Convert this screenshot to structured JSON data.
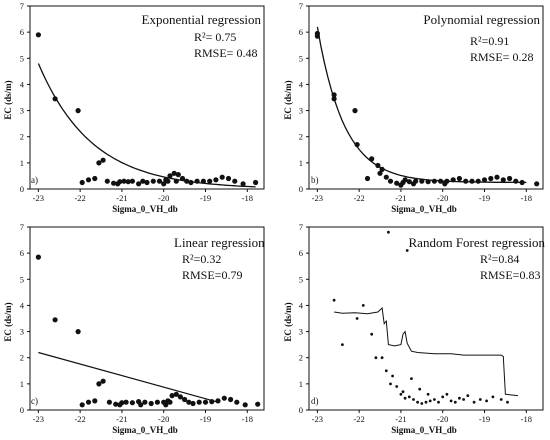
{
  "chart_data": [
    {
      "id": "a",
      "type": "scatter",
      "title": "Exponential regression",
      "stats": [
        "R²= 0.75",
        "RMSE= 0.48"
      ],
      "panel_label": "a)",
      "xlabel": "Sigma_0_VH_db",
      "ylabel": "EC (ds/m)",
      "xlim": [
        -23.2,
        -17.6
      ],
      "ylim": [
        0,
        7
      ],
      "xticks": [
        "-23",
        "-22",
        "-21",
        "-20",
        "-19",
        "-18"
      ],
      "yticks": [
        "0",
        "1",
        "2",
        "3",
        "4",
        "5",
        "6",
        "7"
      ],
      "points": [
        [
          -23.0,
          5.9
        ],
        [
          -22.6,
          3.45
        ],
        [
          -22.05,
          3.0
        ],
        [
          -21.55,
          1.0
        ],
        [
          -21.45,
          1.1
        ],
        [
          -21.8,
          0.35
        ],
        [
          -21.95,
          0.25
        ],
        [
          -21.65,
          0.4
        ],
        [
          -21.35,
          0.3
        ],
        [
          -21.2,
          0.22
        ],
        [
          -21.05,
          0.28
        ],
        [
          -20.95,
          0.3
        ],
        [
          -20.85,
          0.28
        ],
        [
          -20.75,
          0.3
        ],
        [
          -20.5,
          0.3
        ],
        [
          -20.4,
          0.25
        ],
        [
          -20.25,
          0.3
        ],
        [
          -20.1,
          0.3
        ],
        [
          -19.95,
          0.35
        ],
        [
          -19.85,
          0.5
        ],
        [
          -19.75,
          0.6
        ],
        [
          -19.65,
          0.55
        ],
        [
          -19.55,
          0.4
        ],
        [
          -19.45,
          0.3
        ],
        [
          -19.35,
          0.25
        ],
        [
          -19.2,
          0.3
        ],
        [
          -19.05,
          0.3
        ],
        [
          -18.9,
          0.3
        ],
        [
          -18.75,
          0.35
        ],
        [
          -18.6,
          0.45
        ],
        [
          -18.45,
          0.4
        ],
        [
          -18.3,
          0.3
        ],
        [
          -18.1,
          0.2
        ],
        [
          -17.8,
          0.25
        ],
        [
          -20.0,
          0.2
        ],
        [
          -19.9,
          0.3
        ],
        [
          -19.7,
          0.3
        ],
        [
          -20.6,
          0.2
        ],
        [
          -21.1,
          0.2
        ]
      ],
      "curve": {
        "model": "exponential",
        "a": 4.8,
        "b": 0.78,
        "x0": -23.0,
        "x1": -17.8
      }
    },
    {
      "id": "b",
      "type": "scatter",
      "title": "Polynomial regression",
      "stats": [
        "R²=0.91",
        "RMSE= 0.28"
      ],
      "panel_label": "b)",
      "xlabel": "Sigma_0_VH_db",
      "ylabel": "EC (ds/m)",
      "xlim": [
        -23.2,
        -17.6
      ],
      "ylim": [
        0,
        7
      ],
      "xticks": [
        "-23",
        "-22",
        "-21",
        "-20",
        "-19",
        "-18"
      ],
      "yticks": [
        "0",
        "1",
        "2",
        "3",
        "4",
        "5",
        "6",
        "7"
      ],
      "points": [
        [
          -23.0,
          5.95
        ],
        [
          -23.0,
          5.85
        ],
        [
          -22.6,
          3.6
        ],
        [
          -22.6,
          3.45
        ],
        [
          -22.1,
          3.0
        ],
        [
          -22.05,
          1.7
        ],
        [
          -21.7,
          1.15
        ],
        [
          -21.55,
          0.9
        ],
        [
          -21.5,
          0.6
        ],
        [
          -21.35,
          0.45
        ],
        [
          -21.45,
          0.75
        ],
        [
          -21.8,
          0.4
        ],
        [
          -21.25,
          0.3
        ],
        [
          -21.1,
          0.22
        ],
        [
          -20.95,
          0.25
        ],
        [
          -20.8,
          0.28
        ],
        [
          -20.65,
          0.3
        ],
        [
          -20.5,
          0.3
        ],
        [
          -20.35,
          0.28
        ],
        [
          -20.2,
          0.3
        ],
        [
          -20.05,
          0.3
        ],
        [
          -19.9,
          0.3
        ],
        [
          -19.75,
          0.35
        ],
        [
          -19.6,
          0.4
        ],
        [
          -19.45,
          0.3
        ],
        [
          -19.3,
          0.3
        ],
        [
          -19.15,
          0.3
        ],
        [
          -19.0,
          0.35
        ],
        [
          -18.85,
          0.4
        ],
        [
          -18.7,
          0.45
        ],
        [
          -18.55,
          0.35
        ],
        [
          -18.4,
          0.4
        ],
        [
          -18.25,
          0.3
        ],
        [
          -18.1,
          0.25
        ],
        [
          -17.75,
          0.2
        ],
        [
          -20.7,
          0.2
        ],
        [
          -20.9,
          0.35
        ],
        [
          -19.95,
          0.2
        ],
        [
          -21.0,
          0.15
        ]
      ],
      "curve": {
        "model": "polynomial",
        "x0": -23.0,
        "x1": -18.0
      }
    },
    {
      "id": "c",
      "type": "scatter",
      "title": "Linear regression",
      "stats": [
        "R²=0.32",
        "RMSE=0.79"
      ],
      "panel_label": "c)",
      "xlabel": "Sigma_0_VH_db",
      "ylabel": "EC (ds/m)",
      "xlim": [
        -23.2,
        -17.6
      ],
      "ylim": [
        0,
        7
      ],
      "xticks": [
        "-23",
        "-22",
        "-21",
        "-20",
        "-19",
        "-18"
      ],
      "yticks": [
        "0",
        "1",
        "2",
        "3",
        "4",
        "5",
        "6",
        "7"
      ],
      "points": [
        [
          -23.0,
          5.85
        ],
        [
          -22.6,
          3.45
        ],
        [
          -22.05,
          3.0
        ],
        [
          -21.55,
          1.0
        ],
        [
          -21.45,
          1.1
        ],
        [
          -21.8,
          0.3
        ],
        [
          -21.95,
          0.2
        ],
        [
          -21.65,
          0.35
        ],
        [
          -21.3,
          0.3
        ],
        [
          -21.15,
          0.22
        ],
        [
          -21.0,
          0.28
        ],
        [
          -20.9,
          0.3
        ],
        [
          -20.75,
          0.28
        ],
        [
          -20.6,
          0.32
        ],
        [
          -20.45,
          0.3
        ],
        [
          -20.3,
          0.25
        ],
        [
          -20.15,
          0.3
        ],
        [
          -20.0,
          0.3
        ],
        [
          -19.9,
          0.35
        ],
        [
          -19.8,
          0.55
        ],
        [
          -19.7,
          0.6
        ],
        [
          -19.6,
          0.5
        ],
        [
          -19.5,
          0.4
        ],
        [
          -19.4,
          0.3
        ],
        [
          -19.3,
          0.25
        ],
        [
          -19.15,
          0.3
        ],
        [
          -19.0,
          0.3
        ],
        [
          -18.85,
          0.32
        ],
        [
          -18.7,
          0.35
        ],
        [
          -18.55,
          0.45
        ],
        [
          -18.4,
          0.4
        ],
        [
          -18.25,
          0.3
        ],
        [
          -18.05,
          0.2
        ],
        [
          -17.75,
          0.22
        ],
        [
          -19.95,
          0.2
        ],
        [
          -19.85,
          0.3
        ],
        [
          -20.55,
          0.2
        ],
        [
          -21.05,
          0.2
        ]
      ],
      "line": {
        "x0": -23.0,
        "y0": 2.2,
        "x1": -18.7,
        "y1": 0.3
      }
    },
    {
      "id": "d",
      "type": "scatter",
      "title": "Random Forest regression",
      "stats": [
        "R²=0.84",
        "RMSE=0.83"
      ],
      "panel_label": "d)",
      "xlabel": "Sigma_0_VH_db",
      "ylabel": "EC (ds/m)",
      "xlim": [
        -23.2,
        -17.6
      ],
      "ylim": [
        0,
        7
      ],
      "xticks": [
        "-23",
        "-22",
        "-21",
        "-20",
        "-19",
        "-18"
      ],
      "yticks": [
        "0",
        "1",
        "2",
        "3",
        "4",
        "5",
        "6",
        "7"
      ],
      "points": [
        [
          -21.3,
          6.8
        ],
        [
          -20.85,
          6.1
        ],
        [
          -22.6,
          4.2
        ],
        [
          -22.4,
          2.5
        ],
        [
          -22.05,
          3.5
        ],
        [
          -21.9,
          4.0
        ],
        [
          -21.7,
          2.9
        ],
        [
          -21.6,
          2.0
        ],
        [
          -21.45,
          2.0
        ],
        [
          -21.35,
          1.5
        ],
        [
          -21.2,
          1.3
        ],
        [
          -21.1,
          0.9
        ],
        [
          -21.0,
          0.6
        ],
        [
          -20.9,
          0.45
        ],
        [
          -20.8,
          0.5
        ],
        [
          -20.7,
          0.4
        ],
        [
          -20.6,
          0.3
        ],
        [
          -20.5,
          0.25
        ],
        [
          -20.4,
          0.3
        ],
        [
          -20.3,
          0.35
        ],
        [
          -20.2,
          0.4
        ],
        [
          -20.1,
          0.3
        ],
        [
          -20.0,
          0.5
        ],
        [
          -19.9,
          0.6
        ],
        [
          -19.8,
          0.35
        ],
        [
          -19.7,
          0.3
        ],
        [
          -19.6,
          0.45
        ],
        [
          -19.5,
          0.4
        ],
        [
          -19.4,
          0.55
        ],
        [
          -19.25,
          0.3
        ],
        [
          -19.1,
          0.4
        ],
        [
          -18.95,
          0.35
        ],
        [
          -18.8,
          0.5
        ],
        [
          -18.6,
          0.4
        ],
        [
          -18.45,
          0.3
        ],
        [
          -20.75,
          1.2
        ],
        [
          -20.55,
          0.8
        ],
        [
          -20.35,
          0.6
        ],
        [
          -21.25,
          1.0
        ],
        [
          -20.95,
          0.7
        ]
      ],
      "step_curve": [
        [
          -22.6,
          3.75
        ],
        [
          -22.4,
          3.7
        ],
        [
          -22.1,
          3.72
        ],
        [
          -21.8,
          3.68
        ],
        [
          -21.55,
          3.75
        ],
        [
          -21.45,
          3.9
        ],
        [
          -21.4,
          3.3
        ],
        [
          -21.35,
          3.4
        ],
        [
          -21.3,
          2.5
        ],
        [
          -21.15,
          2.45
        ],
        [
          -21.0,
          2.5
        ],
        [
          -20.95,
          2.9
        ],
        [
          -20.9,
          3.0
        ],
        [
          -20.85,
          2.55
        ],
        [
          -20.75,
          2.25
        ],
        [
          -20.6,
          2.2
        ],
        [
          -20.2,
          2.15
        ],
        [
          -19.8,
          2.15
        ],
        [
          -19.5,
          2.1
        ],
        [
          -19.0,
          2.1
        ],
        [
          -18.6,
          2.1
        ],
        [
          -18.55,
          2.05
        ],
        [
          -18.5,
          0.6
        ],
        [
          -18.2,
          0.55
        ]
      ]
    }
  ]
}
